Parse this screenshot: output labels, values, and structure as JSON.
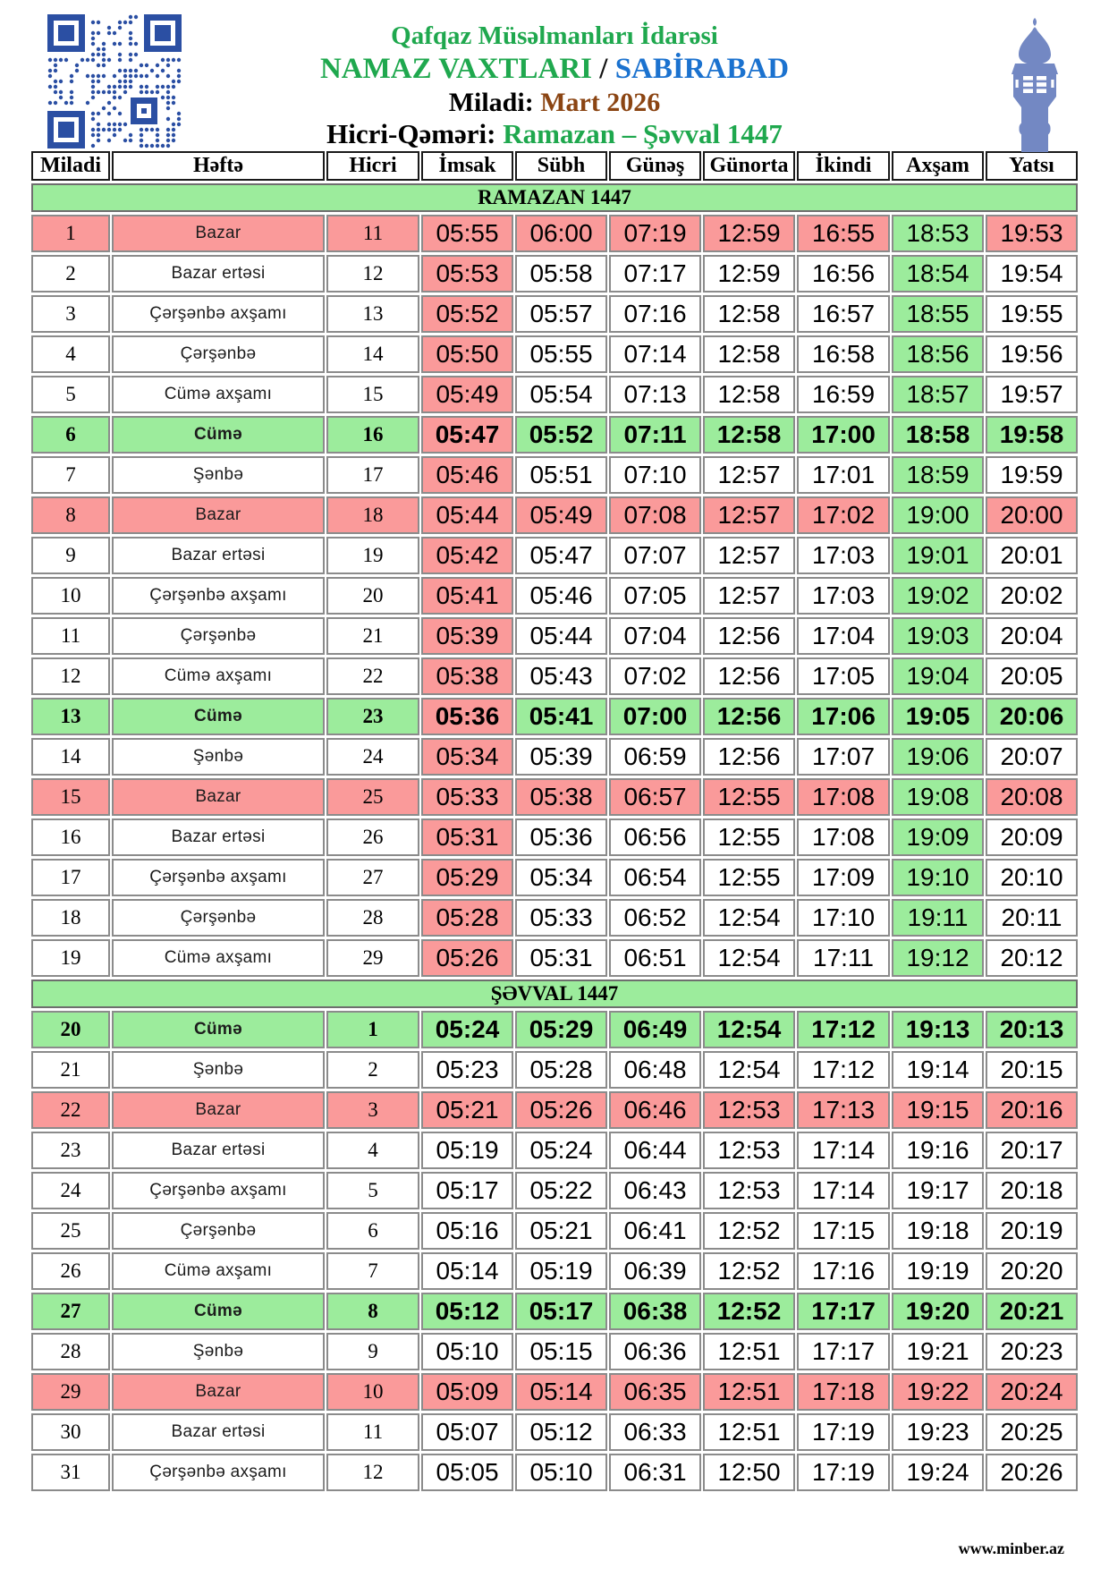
{
  "header": {
    "org": "Qafqaz Müsəlmanları İdarəsi",
    "title_main": "NAMAZ VAXTLARI",
    "title_sep": " / ",
    "title_city": "SABİRABAD",
    "miladi_label": "Miladi:",
    "miladi_value": "Mart 2026",
    "hicri_label": "Hicri-Qəməri:",
    "hicri_value": "Ramazan – Şəvval 1447"
  },
  "table": {
    "columns": [
      "Miladi",
      "Həftə",
      "Hicri",
      "İmsak",
      "Sübh",
      "Günəş",
      "Günorta",
      "İkindi",
      "Axşam",
      "Yatsı"
    ],
    "sections": [
      {
        "title": "RAMAZAN 1447",
        "highlight_columns": true,
        "rows": [
          {
            "miladi": "1",
            "weekday": "Bazar",
            "hicri": "11",
            "times": [
              "05:55",
              "06:00",
              "07:19",
              "12:59",
              "16:55",
              "18:53",
              "19:53"
            ],
            "highlight": "sunday"
          },
          {
            "miladi": "2",
            "weekday": "Bazar ertəsi",
            "hicri": "12",
            "times": [
              "05:53",
              "05:58",
              "07:17",
              "12:59",
              "16:56",
              "18:54",
              "19:54"
            ],
            "highlight": ""
          },
          {
            "miladi": "3",
            "weekday": "Çərşənbə axşamı",
            "hicri": "13",
            "times": [
              "05:52",
              "05:57",
              "07:16",
              "12:58",
              "16:57",
              "18:55",
              "19:55"
            ],
            "highlight": ""
          },
          {
            "miladi": "4",
            "weekday": "Çərşənbə",
            "hicri": "14",
            "times": [
              "05:50",
              "05:55",
              "07:14",
              "12:58",
              "16:58",
              "18:56",
              "19:56"
            ],
            "highlight": ""
          },
          {
            "miladi": "5",
            "weekday": "Cümə axşamı",
            "hicri": "15",
            "times": [
              "05:49",
              "05:54",
              "07:13",
              "12:58",
              "16:59",
              "18:57",
              "19:57"
            ],
            "highlight": ""
          },
          {
            "miladi": "6",
            "weekday": "Cümə",
            "hicri": "16",
            "times": [
              "05:47",
              "05:52",
              "07:11",
              "12:58",
              "17:00",
              "18:58",
              "19:58"
            ],
            "highlight": "friday"
          },
          {
            "miladi": "7",
            "weekday": "Şənbə",
            "hicri": "17",
            "times": [
              "05:46",
              "05:51",
              "07:10",
              "12:57",
              "17:01",
              "18:59",
              "19:59"
            ],
            "highlight": ""
          },
          {
            "miladi": "8",
            "weekday": "Bazar",
            "hicri": "18",
            "times": [
              "05:44",
              "05:49",
              "07:08",
              "12:57",
              "17:02",
              "19:00",
              "20:00"
            ],
            "highlight": "sunday"
          },
          {
            "miladi": "9",
            "weekday": "Bazar ertəsi",
            "hicri": "19",
            "times": [
              "05:42",
              "05:47",
              "07:07",
              "12:57",
              "17:03",
              "19:01",
              "20:01"
            ],
            "highlight": ""
          },
          {
            "miladi": "10",
            "weekday": "Çərşənbə axşamı",
            "hicri": "20",
            "times": [
              "05:41",
              "05:46",
              "07:05",
              "12:57",
              "17:03",
              "19:02",
              "20:02"
            ],
            "highlight": ""
          },
          {
            "miladi": "11",
            "weekday": "Çərşənbə",
            "hicri": "21",
            "times": [
              "05:39",
              "05:44",
              "07:04",
              "12:56",
              "17:04",
              "19:03",
              "20:04"
            ],
            "highlight": ""
          },
          {
            "miladi": "12",
            "weekday": "Cümə axşamı",
            "hicri": "22",
            "times": [
              "05:38",
              "05:43",
              "07:02",
              "12:56",
              "17:05",
              "19:04",
              "20:05"
            ],
            "highlight": ""
          },
          {
            "miladi": "13",
            "weekday": "Cümə",
            "hicri": "23",
            "times": [
              "05:36",
              "05:41",
              "07:00",
              "12:56",
              "17:06",
              "19:05",
              "20:06"
            ],
            "highlight": "friday"
          },
          {
            "miladi": "14",
            "weekday": "Şənbə",
            "hicri": "24",
            "times": [
              "05:34",
              "05:39",
              "06:59",
              "12:56",
              "17:07",
              "19:06",
              "20:07"
            ],
            "highlight": ""
          },
          {
            "miladi": "15",
            "weekday": "Bazar",
            "hicri": "25",
            "times": [
              "05:33",
              "05:38",
              "06:57",
              "12:55",
              "17:08",
              "19:08",
              "20:08"
            ],
            "highlight": "sunday"
          },
          {
            "miladi": "16",
            "weekday": "Bazar ertəsi",
            "hicri": "26",
            "times": [
              "05:31",
              "05:36",
              "06:56",
              "12:55",
              "17:08",
              "19:09",
              "20:09"
            ],
            "highlight": ""
          },
          {
            "miladi": "17",
            "weekday": "Çərşənbə axşamı",
            "hicri": "27",
            "times": [
              "05:29",
              "05:34",
              "06:54",
              "12:55",
              "17:09",
              "19:10",
              "20:10"
            ],
            "highlight": ""
          },
          {
            "miladi": "18",
            "weekday": "Çərşənbə",
            "hicri": "28",
            "times": [
              "05:28",
              "05:33",
              "06:52",
              "12:54",
              "17:10",
              "19:11",
              "20:11"
            ],
            "highlight": ""
          },
          {
            "miladi": "19",
            "weekday": "Cümə axşamı",
            "hicri": "29",
            "times": [
              "05:26",
              "05:31",
              "06:51",
              "12:54",
              "17:11",
              "19:12",
              "20:12"
            ],
            "highlight": ""
          }
        ]
      },
      {
        "title": "ŞƏVVAL 1447",
        "highlight_columns": false,
        "rows": [
          {
            "miladi": "20",
            "weekday": "Cümə",
            "hicri": "1",
            "times": [
              "05:24",
              "05:29",
              "06:49",
              "12:54",
              "17:12",
              "19:13",
              "20:13"
            ],
            "highlight": "friday"
          },
          {
            "miladi": "21",
            "weekday": "Şənbə",
            "hicri": "2",
            "times": [
              "05:23",
              "05:28",
              "06:48",
              "12:54",
              "17:12",
              "19:14",
              "20:15"
            ],
            "highlight": ""
          },
          {
            "miladi": "22",
            "weekday": "Bazar",
            "hicri": "3",
            "times": [
              "05:21",
              "05:26",
              "06:46",
              "12:53",
              "17:13",
              "19:15",
              "20:16"
            ],
            "highlight": "sunday"
          },
          {
            "miladi": "23",
            "weekday": "Bazar ertəsi",
            "hicri": "4",
            "times": [
              "05:19",
              "05:24",
              "06:44",
              "12:53",
              "17:14",
              "19:16",
              "20:17"
            ],
            "highlight": ""
          },
          {
            "miladi": "24",
            "weekday": "Çərşənbə axşamı",
            "hicri": "5",
            "times": [
              "05:17",
              "05:22",
              "06:43",
              "12:53",
              "17:14",
              "19:17",
              "20:18"
            ],
            "highlight": ""
          },
          {
            "miladi": "25",
            "weekday": "Çərşənbə",
            "hicri": "6",
            "times": [
              "05:16",
              "05:21",
              "06:41",
              "12:52",
              "17:15",
              "19:18",
              "20:19"
            ],
            "highlight": ""
          },
          {
            "miladi": "26",
            "weekday": "Cümə axşamı",
            "hicri": "7",
            "times": [
              "05:14",
              "05:19",
              "06:39",
              "12:52",
              "17:16",
              "19:19",
              "20:20"
            ],
            "highlight": ""
          },
          {
            "miladi": "27",
            "weekday": "Cümə",
            "hicri": "8",
            "times": [
              "05:12",
              "05:17",
              "06:38",
              "12:52",
              "17:17",
              "19:20",
              "20:21"
            ],
            "highlight": "friday"
          },
          {
            "miladi": "28",
            "weekday": "Şənbə",
            "hicri": "9",
            "times": [
              "05:10",
              "05:15",
              "06:36",
              "12:51",
              "17:17",
              "19:21",
              "20:23"
            ],
            "highlight": ""
          },
          {
            "miladi": "29",
            "weekday": "Bazar",
            "hicri": "10",
            "times": [
              "05:09",
              "05:14",
              "06:35",
              "12:51",
              "17:18",
              "19:22",
              "20:24"
            ],
            "highlight": "sunday"
          },
          {
            "miladi": "30",
            "weekday": "Bazar ertəsi",
            "hicri": "11",
            "times": [
              "05:07",
              "05:12",
              "06:33",
              "12:51",
              "17:19",
              "19:23",
              "20:25"
            ],
            "highlight": ""
          },
          {
            "miladi": "31",
            "weekday": "Çərşənbə axşamı",
            "hicri": "12",
            "times": [
              "05:05",
              "05:10",
              "06:31",
              "12:50",
              "17:19",
              "19:24",
              "20:26"
            ],
            "highlight": ""
          }
        ]
      }
    ]
  },
  "footer": {
    "website": "www.minber.az"
  },
  "colors": {
    "pink": "#fa9a9a",
    "green": "#9cec9c",
    "title_green": "#1fa84e",
    "title_blue": "#1b72cf",
    "brown": "#8b4513",
    "qr_blue": "#2b4fa3",
    "minaret_blue": "#7388c3"
  }
}
